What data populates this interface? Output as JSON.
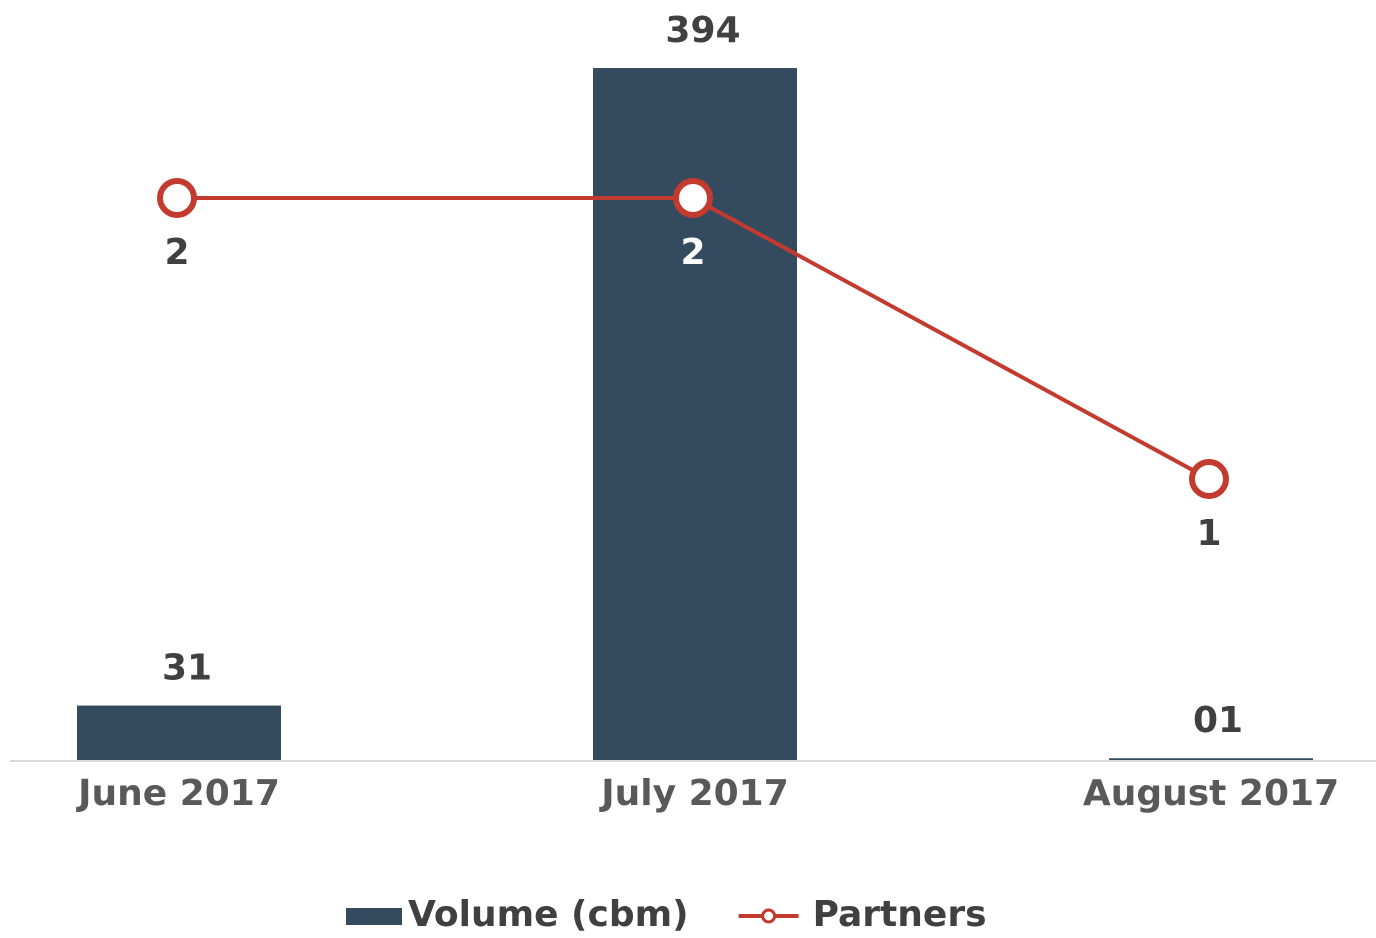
{
  "chart_data": {
    "type": "bar",
    "categories": [
      "June 2017",
      "July 2017",
      "August 2017"
    ],
    "series": [
      {
        "name": "Volume (cbm)",
        "type": "bar",
        "color": "#344a5f",
        "values": [
          31,
          394,
          1
        ],
        "value_labels": [
          "31",
          "394",
          "01"
        ]
      },
      {
        "name": "Partners",
        "type": "line",
        "axis": "y2",
        "color": "#c23b2e",
        "values": [
          2,
          2,
          1
        ]
      }
    ],
    "ylim": [
      0,
      400
    ],
    "y2lim": [
      0,
      2.5
    ],
    "legend": "bottom"
  }
}
